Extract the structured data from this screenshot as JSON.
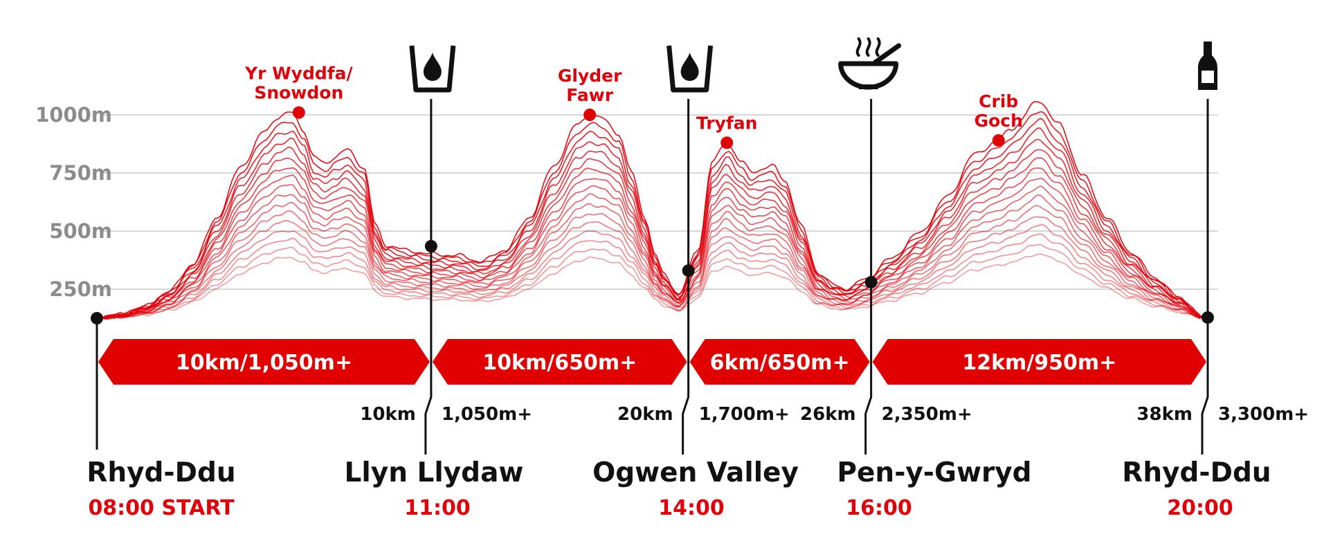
{
  "colors": {
    "accent": "#e00000",
    "line": "#e0000a",
    "ink": "#111111",
    "grid": "#d6d6d6",
    "tick": "#8c8c8c"
  },
  "chart_data": {
    "type": "area",
    "x_unit": "km",
    "y_unit": "m",
    "ylim": [
      120,
      1060
    ],
    "yticks": [
      250,
      500,
      750,
      1000
    ],
    "ytick_labels": [
      "250m",
      "500m",
      "750m",
      "1000m"
    ],
    "grid": true,
    "profile": [
      [
        0,
        125
      ],
      [
        1,
        140
      ],
      [
        2,
        175
      ],
      [
        3,
        240
      ],
      [
        4,
        360
      ],
      [
        5,
        560
      ],
      [
        6,
        780
      ],
      [
        7,
        930
      ],
      [
        7.5,
        990
      ],
      [
        8.1,
        1010
      ],
      [
        8.6,
        935
      ],
      [
        9,
        820
      ],
      [
        9.5,
        790
      ],
      [
        9.9,
        820
      ],
      [
        10.4,
        850
      ],
      [
        11.1,
        775
      ],
      [
        11.6,
        520
      ],
      [
        12,
        440
      ],
      [
        13,
        415
      ],
      [
        14,
        400
      ],
      [
        15,
        395
      ],
      [
        16,
        370
      ],
      [
        17,
        420
      ],
      [
        18,
        560
      ],
      [
        19,
        780
      ],
      [
        20,
        960
      ],
      [
        20.5,
        1000
      ],
      [
        21,
        985
      ],
      [
        21.7,
        920
      ],
      [
        22.2,
        760
      ],
      [
        22.8,
        560
      ],
      [
        23.2,
        400
      ],
      [
        23.6,
        310
      ],
      [
        24.2,
        225
      ],
      [
        25,
        420
      ],
      [
        25.6,
        800
      ],
      [
        26.2,
        880
      ],
      [
        26.8,
        800
      ],
      [
        27.2,
        755
      ],
      [
        28.1,
        780
      ],
      [
        28.6,
        720
      ],
      [
        29.3,
        520
      ],
      [
        30,
        320
      ],
      [
        30.6,
        270
      ],
      [
        31.2,
        250
      ],
      [
        32,
        295
      ],
      [
        33,
        380
      ],
      [
        34.2,
        490
      ],
      [
        35.4,
        650
      ],
      [
        36.5,
        830
      ],
      [
        37.5,
        890
      ],
      [
        38,
        940
      ],
      [
        39.2,
        1060
      ],
      [
        40,
        960
      ],
      [
        41,
        740
      ],
      [
        42,
        560
      ],
      [
        43,
        410
      ],
      [
        44,
        300
      ],
      [
        45,
        215
      ],
      [
        46,
        130
      ]
    ],
    "contours": 17,
    "peaks": [
      {
        "x": 8.4,
        "y": 1010,
        "label": [
          "Yr Wyddfa/",
          "Snowdon"
        ]
      },
      {
        "x": 20.5,
        "y": 1000,
        "label": [
          "Glyder",
          "Fawr"
        ]
      },
      {
        "x": 26.2,
        "y": 880,
        "label": [
          "Tryfan"
        ]
      },
      {
        "x": 37.5,
        "y": 890,
        "label": [
          "Crib",
          "Goch"
        ]
      }
    ],
    "stops": [
      {
        "name": "Rhyd-Ddu",
        "time": "08:00 START",
        "x": 0,
        "y": 125,
        "dist": "",
        "gain": "",
        "icon": ""
      },
      {
        "name": "Llyn Llydaw",
        "time": "11:00",
        "x": 13.9,
        "y": 435,
        "dist": "10km",
        "gain": "1,050m+",
        "icon": "water-cup-icon"
      },
      {
        "name": "Ogwen Valley",
        "time": "14:00",
        "x": 24.6,
        "y": 330,
        "dist": "20km",
        "gain": "1,700m+",
        "icon": "water-cup-icon"
      },
      {
        "name": "Pen-y-Gwryd",
        "time": "16:00",
        "x": 32.2,
        "y": 280,
        "dist": "26km",
        "gain": "2,350m+",
        "icon": "soup-bowl-icon"
      },
      {
        "name": "Rhyd-Ddu",
        "time": "20:00",
        "x": 46.2,
        "y": 128,
        "dist": "38km",
        "gain": "3,300m+",
        "icon": "bottle-icon"
      }
    ],
    "segments": [
      "10km/1,050m+",
      "10km/650m+",
      "6km/650m+",
      "12km/950m+"
    ]
  }
}
